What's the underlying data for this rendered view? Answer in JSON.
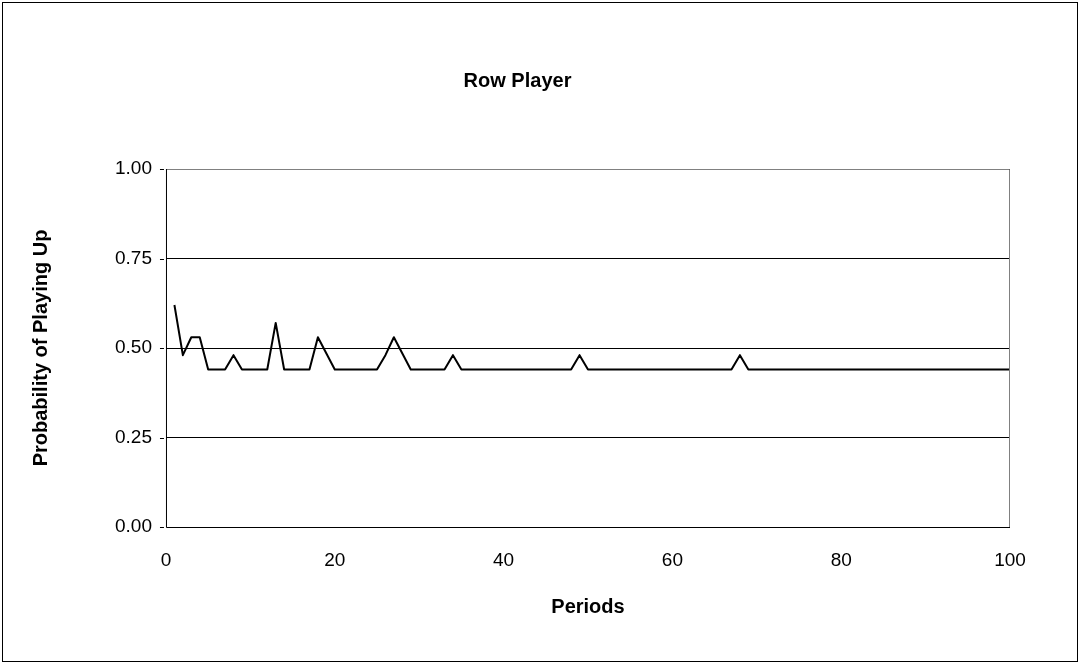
{
  "chart_data": {
    "type": "line",
    "title": "Row Player",
    "xlabel": "Periods",
    "ylabel": "Probability of Playing Up",
    "x": [
      1,
      2,
      3,
      4,
      5,
      7,
      8,
      9,
      12,
      13,
      14,
      17,
      18,
      20,
      25,
      26,
      27,
      29,
      33,
      34,
      35,
      48,
      49,
      50,
      67,
      68,
      69,
      100
    ],
    "series": [
      {
        "color": "#000000",
        "values": [
          0.62,
          0.48,
          0.53,
          0.53,
          0.44,
          0.44,
          0.48,
          0.44,
          0.44,
          0.57,
          0.44,
          0.44,
          0.53,
          0.44,
          0.44,
          0.48,
          0.53,
          0.44,
          0.44,
          0.48,
          0.44,
          0.44,
          0.48,
          0.44,
          0.44,
          0.48,
          0.44,
          0.44
        ]
      }
    ],
    "xlim": [
      0,
      100
    ],
    "xticks": [
      0,
      20,
      40,
      60,
      80,
      100
    ],
    "ylim": [
      0,
      1
    ],
    "yticks": [
      {
        "value": 0,
        "label": "0.00"
      },
      {
        "value": 0.25,
        "label": "0.25"
      },
      {
        "value": 0.5,
        "label": "0.50"
      },
      {
        "value": 0.75,
        "label": "0.75"
      },
      {
        "value": 1,
        "label": "1.00"
      }
    ],
    "grid": "y",
    "legend": false,
    "marker": "none",
    "line_style": "solid"
  }
}
